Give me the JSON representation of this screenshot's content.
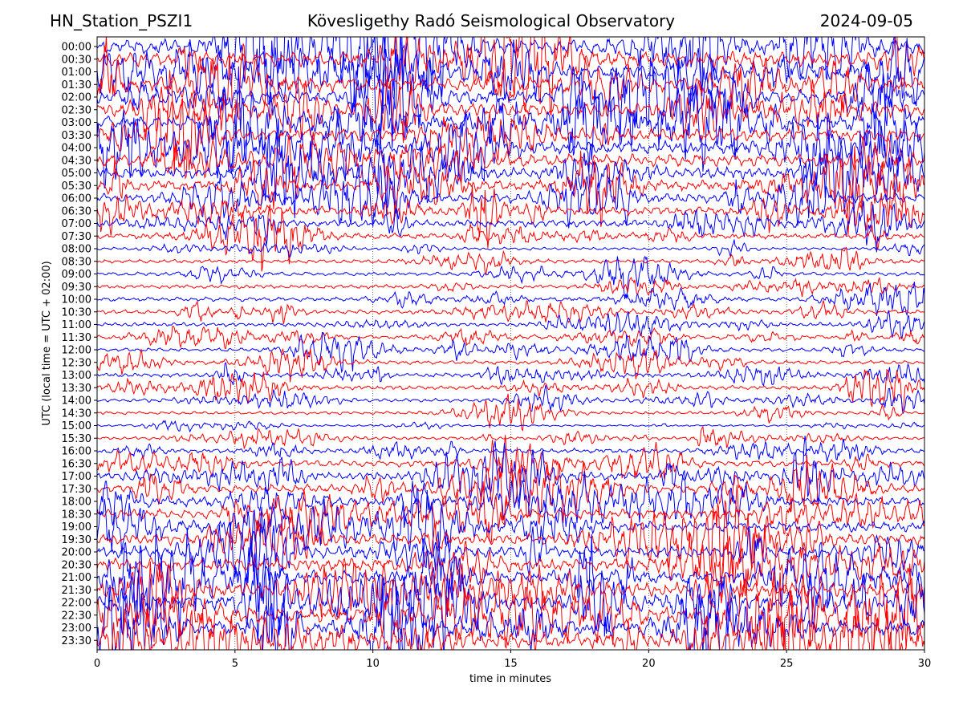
{
  "header": {
    "station": "HN_Station_PSZI1",
    "observatory": "Kövesligethy Radó Seismological Observatory",
    "date": "2024-09-05"
  },
  "chart_data": {
    "type": "line",
    "title": "Kövesligethy Radó Seismological Observatory",
    "xlabel": "time in minutes",
    "ylabel": "UTC (local time = UTC + 02:00)",
    "xlim": [
      0,
      30
    ],
    "x_ticks": [
      0,
      5,
      10,
      15,
      20,
      25,
      30
    ],
    "y_ticks": [
      "00:00",
      "00:30",
      "01:00",
      "01:30",
      "02:00",
      "02:30",
      "03:00",
      "03:30",
      "04:00",
      "04:30",
      "05:00",
      "05:30",
      "06:00",
      "06:30",
      "07:00",
      "07:30",
      "08:00",
      "08:30",
      "09:00",
      "09:30",
      "10:00",
      "10:30",
      "11:00",
      "11:30",
      "12:00",
      "12:30",
      "13:00",
      "13:30",
      "14:00",
      "14:30",
      "15:00",
      "15:30",
      "16:00",
      "16:30",
      "17:00",
      "17:30",
      "18:00",
      "18:30",
      "19:00",
      "19:30",
      "20:00",
      "20:30",
      "21:00",
      "21:30",
      "22:00",
      "22:30",
      "23:00",
      "23:30"
    ],
    "trace_colors": [
      "#0000ff",
      "#ff0000"
    ],
    "trace_amplitude": [
      3.0,
      3.0,
      2.9,
      2.9,
      2.8,
      2.8,
      2.7,
      2.6,
      2.5,
      2.4,
      2.2,
      2.0,
      1.8,
      1.6,
      1.4,
      1.1,
      0.55,
      0.75,
      0.75,
      0.75,
      0.8,
      0.8,
      0.75,
      0.75,
      0.7,
      0.75,
      0.8,
      0.8,
      0.7,
      0.6,
      0.4,
      0.6,
      0.9,
      1.3,
      1.5,
      1.6,
      1.8,
      1.9,
      2.0,
      2.1,
      2.3,
      2.5,
      2.7,
      2.8,
      2.9,
      3.0,
      3.0,
      3.0
    ],
    "grid": true,
    "grid_style": "dotted-vertical"
  }
}
